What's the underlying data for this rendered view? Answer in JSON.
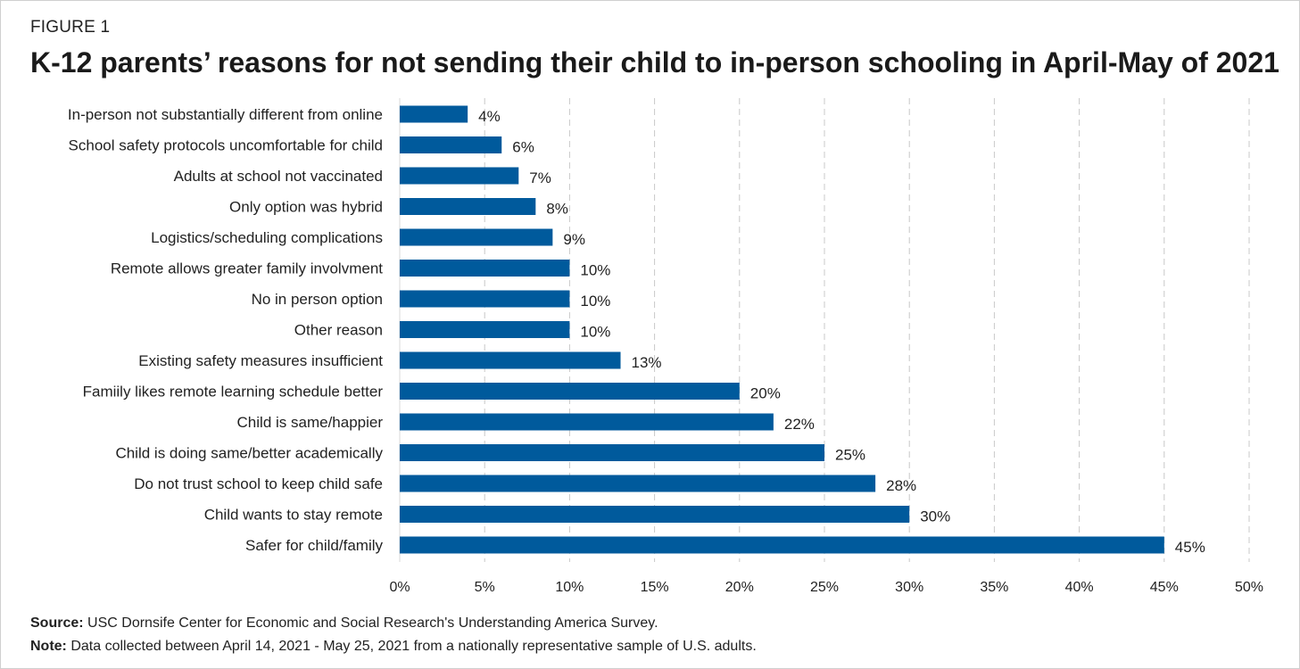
{
  "header": {
    "figure_label": "FIGURE 1",
    "title": "K-12 parents’ reasons for not sending their child to in-person schooling in April-May of 2021"
  },
  "footer": {
    "source_label": "Source:",
    "source_text": "USC Dornsife Center for Economic and Social Research's Understanding America Survey.",
    "note_label": "Note:",
    "note_text": "Data collected between April 14, 2021 - May 25, 2021 from a nationally representative sample of U.S. adults."
  },
  "colors": {
    "bar": "#005a9c",
    "grid": "#c8c8c8",
    "text": "#222222"
  },
  "chart_data": {
    "type": "bar",
    "orientation": "horizontal",
    "categories": [
      "In-person not substantially different from online",
      "School safety protocols uncomfortable for child",
      "Adults at school not vaccinated",
      "Only option was hybrid",
      "Logistics/scheduling complications",
      "Remote allows greater family involvment",
      "No in person option",
      "Other reason",
      "Existing safety measures insufficient",
      "Famiily likes remote learning schedule better",
      "Child is same/happier",
      "Child is doing same/better academically",
      "Do not trust school to keep child safe",
      "Child wants to stay remote",
      "Safer for child/family"
    ],
    "values": [
      4,
      6,
      7,
      8,
      9,
      10,
      10,
      10,
      13,
      20,
      22,
      25,
      28,
      30,
      45
    ],
    "value_labels": [
      "4%",
      "6%",
      "7%",
      "8%",
      "9%",
      "10%",
      "10%",
      "10%",
      "13%",
      "20%",
      "22%",
      "25%",
      "28%",
      "30%",
      "45%"
    ],
    "xlim": [
      0,
      50
    ],
    "xticks": [
      0,
      5,
      10,
      15,
      20,
      25,
      30,
      35,
      40,
      45,
      50
    ],
    "xtick_labels": [
      "0%",
      "5%",
      "10%",
      "15%",
      "20%",
      "25%",
      "30%",
      "35%",
      "40%",
      "45%",
      "50%"
    ],
    "grid": "vertical dashed",
    "legend": "none"
  }
}
